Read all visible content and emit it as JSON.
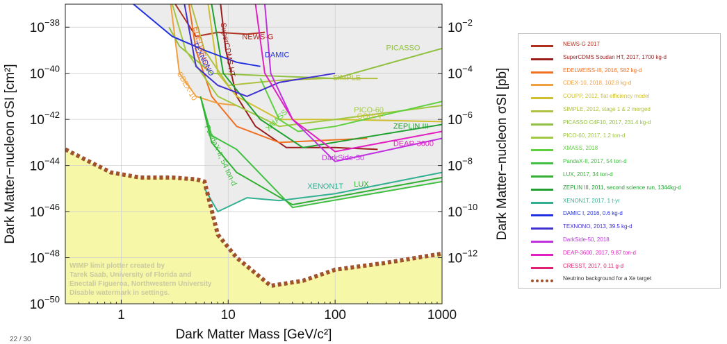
{
  "chart_data": {
    "type": "line",
    "xlabel": "Dark Matter Mass [GeV/c²]",
    "ylabel_left": "Dark Matter−nucleon σSI [cm²]",
    "ylabel_right": "Dark Matter−nucleon σSI [pb]",
    "xscale": "log",
    "yscale": "log",
    "xlim": [
      0.3,
      1000
    ],
    "ylim": [
      1e-50,
      1e-37
    ],
    "x_ticks": [
      {
        "value": 1,
        "label": "1"
      },
      {
        "value": 10,
        "label": "10"
      },
      {
        "value": 100,
        "label": "100"
      },
      {
        "value": 1000,
        "label": "1000"
      }
    ],
    "y_ticks_left": [
      {
        "value": 1e-38,
        "base": "10",
        "exp": "−38"
      },
      {
        "value": 1e-40,
        "base": "10",
        "exp": "−40"
      },
      {
        "value": 1e-42,
        "base": "10",
        "exp": "−42"
      },
      {
        "value": 1e-44,
        "base": "10",
        "exp": "−44"
      },
      {
        "value": 1e-46,
        "base": "10",
        "exp": "−46"
      },
      {
        "value": 1e-48,
        "base": "10",
        "exp": "−48"
      },
      {
        "value": 1e-50,
        "base": "10",
        "exp": "−50"
      }
    ],
    "y_ticks_right": [
      {
        "value": 1e-38,
        "base": "10",
        "exp": "−2"
      },
      {
        "value": 1e-40,
        "base": "10",
        "exp": "−4"
      },
      {
        "value": 1e-42,
        "base": "10",
        "exp": "−6"
      },
      {
        "value": 1e-44,
        "base": "10",
        "exp": "−8"
      },
      {
        "value": 1e-46,
        "base": "10",
        "exp": "−10"
      },
      {
        "value": 1e-48,
        "base": "10",
        "exp": "−12"
      }
    ],
    "grid": true,
    "excluded_region_fill": "#ececec",
    "neutrino_floor_fill": "#f7f7a8",
    "series": [
      {
        "name": "NEWS-G 2017",
        "label": "NEWS-G",
        "color": "#b03020",
        "label_at": [
          13.5,
          3e-39
        ],
        "points": [
          [
            3.2,
            1e-37
          ],
          [
            5,
            4e-39
          ],
          [
            8,
            6e-39
          ],
          [
            15,
            5e-39
          ],
          [
            22,
            6e-39
          ]
        ]
      },
      {
        "name": "SuperCDMS Soudan HT, 2017, 1700 kg-d",
        "label": "SuperCDMS HT",
        "color": "#9a1c1c",
        "label_at": [
          8.5,
          1.5e-38
        ],
        "label_rotate": 80,
        "points": [
          [
            8.5,
            1e-37
          ],
          [
            9.5,
            1e-39
          ],
          [
            12,
            1e-41
          ],
          [
            18,
            5e-43
          ],
          [
            35,
            6e-44
          ],
          [
            100,
            6e-44
          ],
          [
            250,
            5e-44
          ]
        ]
      },
      {
        "name": "EDELWEISS-III, 2016, 582 kg-d",
        "label": "EDELWEISS",
        "color": "#f07020",
        "label_at": [
          4.7,
          1e-38
        ],
        "label_rotate": 75,
        "points": [
          [
            4.3,
            1e-37
          ],
          [
            5,
            1e-39
          ],
          [
            7,
            1e-41
          ],
          [
            12,
            5e-43
          ],
          [
            30,
            1e-43
          ],
          [
            200,
            1.5e-43
          ]
        ]
      },
      {
        "name": "CDEX-10, 2018, 102.8 kg-d",
        "label": "CDEX-10",
        "color": "#f0a040",
        "label_at": [
          3.3,
          1e-40
        ],
        "label_rotate": 60,
        "points": [
          [
            2.9,
            1e-37
          ],
          [
            3.5,
            1e-40
          ],
          [
            5,
            1e-41
          ],
          [
            8,
            5e-42
          ],
          [
            12,
            4e-42
          ]
        ]
      },
      {
        "name": "COUPP, 2012, flat efficiency model",
        "label": "COUPP",
        "color": "#d0c030",
        "label_at": [
          160,
          1.1e-42
        ],
        "points": [
          [
            6.5,
            1e-37
          ],
          [
            8,
            1e-40
          ],
          [
            12,
            1e-41
          ],
          [
            30,
            1e-42
          ],
          [
            100,
            1e-42
          ],
          [
            1000,
            8e-43
          ]
        ]
      },
      {
        "name": "SIMPLE, 2012, stage 1 & 2 merged",
        "label": "SIMPLE",
        "color": "#b0c040",
        "label_at": [
          95,
          5e-41
        ],
        "points": [
          [
            4.5,
            1e-37
          ],
          [
            6,
            1e-39
          ],
          [
            10,
            3e-41
          ],
          [
            30,
            5e-41
          ],
          [
            80,
            6e-41
          ],
          [
            250,
            6e-41
          ]
        ]
      },
      {
        "name": "PICASSO C4F10, 2017, 231.4 kg-d",
        "label": "PICASSO",
        "color": "#90c040",
        "label_at": [
          300,
          1e-39
        ],
        "points": [
          [
            2.8,
            1e-38
          ],
          [
            3.5,
            1.5e-39
          ],
          [
            7,
            1e-40
          ],
          [
            20,
            8e-41
          ],
          [
            100,
            6e-41
          ],
          [
            1000,
            1.2e-39
          ]
        ]
      },
      {
        "name": "PICO-60, 2017, 1.2 ton-d",
        "label": "PICO-60",
        "color": "#a0c840",
        "label_at": [
          150,
          2e-42
        ],
        "points": [
          [
            3,
            1e-37
          ],
          [
            4,
            1e-39
          ],
          [
            8,
            1e-41
          ],
          [
            30,
            5e-43
          ],
          [
            100,
            1e-42
          ],
          [
            1000,
            4e-42
          ]
        ]
      },
      {
        "name": "XMASS, 2018",
        "label": "XMASS",
        "color": "#60d040",
        "label_at": [
          24,
          3e-43
        ],
        "label_rotate": -45,
        "points": [
          [
            20,
            6e-41
          ],
          [
            30,
            1e-42
          ],
          [
            45,
            3e-43
          ],
          [
            100,
            5e-43
          ],
          [
            1000,
            6e-42
          ]
        ]
      },
      {
        "name": "PandaX-II, 2017, 54 ton-d",
        "label": "PandaX-II, 54 ton-d",
        "color": "#40c040",
        "label_at": [
          6,
          5e-43
        ],
        "label_rotate": 65,
        "points": [
          [
            5.5,
            1e-41
          ],
          [
            7,
            2e-43
          ],
          [
            12,
            5e-44
          ],
          [
            40,
            1.5e-46
          ],
          [
            1000,
            2e-45
          ]
        ]
      },
      {
        "name": "LUX, 2017, 34 ton-d",
        "label": "LUX",
        "color": "#30b030",
        "label_at": [
          150,
          1.2e-45
        ],
        "points": [
          [
            5.5,
            1e-41
          ],
          [
            7,
            1e-43
          ],
          [
            12,
            5e-45
          ],
          [
            40,
            2e-46
          ],
          [
            1000,
            3e-45
          ]
        ]
      },
      {
        "name": "ZEPLIN III, 2011, second science run, 1344kg-d",
        "label": "ZEPLIN III",
        "color": "#20a030",
        "label_at": [
          350,
          4e-43
        ],
        "points": [
          [
            7,
            1e-37
          ],
          [
            9,
            1e-40
          ],
          [
            20,
            1e-42
          ],
          [
            50,
            6e-44
          ],
          [
            1000,
            6e-43
          ]
        ]
      },
      {
        "name": "XENON1T, 2017, 1 t-yr",
        "label": "XENON1T",
        "color": "#30b090",
        "label_at": [
          55,
          1e-45
        ],
        "points": [
          [
            6,
            1e-45
          ],
          [
            8,
            1e-46
          ],
          [
            15,
            4e-46
          ],
          [
            30,
            3e-46
          ],
          [
            100,
            6e-46
          ],
          [
            1000,
            5e-45
          ]
        ]
      },
      {
        "name": "DAMIC I, 2016, 0.6 kg-d",
        "label": "DAMIC",
        "color": "#2030e0",
        "label_at": [
          22,
          5e-40
        ],
        "points": [
          [
            1.3,
            1e-37
          ],
          [
            3,
            4e-39
          ],
          [
            6,
            1e-39
          ],
          [
            12,
            3e-40
          ],
          [
            20,
            2e-40
          ]
        ]
      },
      {
        "name": "TEXNONO, 2013, 39.5 kg-d",
        "label": "TEXNONO",
        "color": "#4030d0",
        "label_at": [
          4.6,
          2e-39
        ],
        "label_rotate": 62,
        "points": [
          [
            3.9,
            1e-37
          ],
          [
            5,
            2e-40
          ],
          [
            8,
            3e-41
          ],
          [
            15,
            1e-41
          ],
          [
            30,
            4e-41
          ],
          [
            100,
            1e-40
          ]
        ]
      },
      {
        "name": "DarkSide-50, 2018",
        "label": "DarkSide-50",
        "color": "#c030e0",
        "label_at": [
          75,
          1.7e-44
        ],
        "points": [
          [
            22,
            1e-37
          ],
          [
            25,
            1e-40
          ],
          [
            40,
            1e-42
          ],
          [
            100,
            1.5e-44
          ],
          [
            1000,
            1.5e-43
          ]
        ]
      },
      {
        "name": "DEAP-3600, 2017, 9.87 ton-d",
        "label": "DEAP-3600",
        "color": "#e020c0",
        "label_at": [
          350,
          7e-44
        ],
        "points": [
          [
            18,
            1e-37
          ],
          [
            22,
            1e-40
          ],
          [
            40,
            1e-42
          ],
          [
            100,
            4e-44
          ],
          [
            1000,
            3e-43
          ]
        ]
      },
      {
        "name": "CRESST, 2017, 0.11 g-d",
        "label": "",
        "color": "#e02070",
        "label_at": null,
        "points": []
      }
    ],
    "neutrino_floor": {
      "name": "Neutrino background for a Xe target",
      "color": "#a0522d",
      "points": [
        [
          0.3,
          5e-44
        ],
        [
          0.5,
          1.5e-44
        ],
        [
          0.8,
          5e-45
        ],
        [
          1.5,
          3e-45
        ],
        [
          3,
          3e-45
        ],
        [
          5,
          2.5e-45
        ],
        [
          6,
          2e-45
        ],
        [
          8,
          1e-47
        ],
        [
          12,
          1e-48
        ],
        [
          25,
          6e-50
        ],
        [
          50,
          1e-49
        ],
        [
          100,
          3e-49
        ],
        [
          300,
          6e-49
        ],
        [
          1000,
          1.5e-48
        ]
      ]
    }
  },
  "watermark": {
    "line1": "WIMP limit plotter created by",
    "line2": "Tarek Saab, University of Florida and",
    "line3": "Enectali Figueroa, Northwestern University",
    "line4": "Disable watermark in settings."
  },
  "legend": {
    "items": [
      {
        "label": "NEWS-G 2017",
        "color": "#b03020",
        "dotted": false
      },
      {
        "label": "SuperCDMS Soudan HT, 2017, 1700 kg-d",
        "color": "#9a1c1c",
        "dotted": false
      },
      {
        "label": "EDELWEISS-III, 2016, 582 kg-d",
        "color": "#f07020",
        "dotted": false
      },
      {
        "label": "CDEX-10, 2018, 102.8 kg-d",
        "color": "#f0a040",
        "dotted": false
      },
      {
        "label": "COUPP, 2012, flat efficiency model",
        "color": "#d0c030",
        "dotted": false
      },
      {
        "label": "SIMPLE, 2012, stage 1 & 2 merged",
        "color": "#b0c040",
        "dotted": false
      },
      {
        "label": "PICASSO C4F10, 2017, 231.4 kg-d",
        "color": "#90c040",
        "dotted": false
      },
      {
        "label": "PICO-60, 2017, 1.2 ton-d",
        "color": "#a0c840",
        "dotted": false
      },
      {
        "label": "XMASS, 2018",
        "color": "#60d040",
        "dotted": false
      },
      {
        "label": "PandaX-II, 2017, 54 ton-d",
        "color": "#40c040",
        "dotted": false
      },
      {
        "label": "LUX, 2017, 34 ton-d",
        "color": "#30b030",
        "dotted": false
      },
      {
        "label": "ZEPLIN III, 2011, second science run, 1344kg-d",
        "color": "#20a030",
        "dotted": false
      },
      {
        "label": "XENON1T, 2017, 1 t-yr",
        "color": "#30b090",
        "dotted": false
      },
      {
        "label": "DAMIC I, 2016, 0.6 kg-d",
        "color": "#2030e0",
        "dotted": false
      },
      {
        "label": "TEXNONO, 2013, 39.5 kg-d",
        "color": "#4030d0",
        "dotted": false
      },
      {
        "label": "DarkSide-50, 2018",
        "color": "#c030e0",
        "dotted": false
      },
      {
        "label": "DEAP-3600, 2017, 9.87 ton-d",
        "color": "#e020c0",
        "dotted": false
      },
      {
        "label": "CRESST, 2017, 0.11 g-d",
        "color": "#e02070",
        "dotted": false
      },
      {
        "label": "Neutrino background for a Xe target",
        "color": "#a0522d",
        "dotted": true
      }
    ]
  },
  "page_number": "22 / 30"
}
